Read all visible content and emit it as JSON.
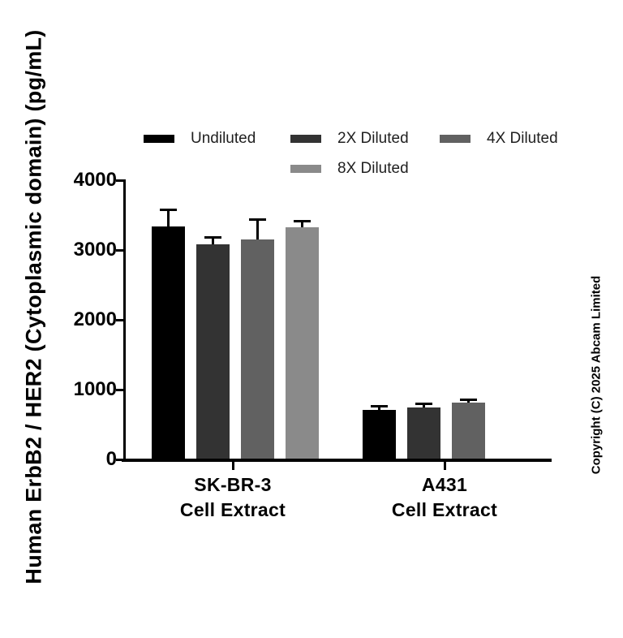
{
  "chart_data": {
    "type": "bar",
    "title": "",
    "xlabel": "",
    "ylabel": "Human ErbB2 / HER2 (Cytoplasmic domain) (pg/mL)",
    "ylim": [
      0,
      4000
    ],
    "yticks": [
      {
        "value": 0,
        "label": "0"
      },
      {
        "value": 1000,
        "label": "1000"
      },
      {
        "value": 2000,
        "label": "2000"
      },
      {
        "value": 3000,
        "label": "3000"
      },
      {
        "value": 4000,
        "label": "4000"
      }
    ],
    "grid": "off",
    "legend_position": "top",
    "categories": [
      {
        "line1": "SK-BR-3",
        "line2": "Cell Extract"
      },
      {
        "line1": "A431",
        "line2": "Cell Extract"
      }
    ],
    "series": [
      {
        "name": "Undiluted",
        "color": "#000000",
        "values": [
          3340,
          710
        ],
        "errors": [
          220,
          35
        ]
      },
      {
        "name": "2X Diluted",
        "color": "#333333",
        "values": [
          3080,
          745
        ],
        "errors": [
          80,
          30
        ]
      },
      {
        "name": "4X Diluted",
        "color": "#616161",
        "values": [
          3150,
          810
        ],
        "errors": [
          270,
          25
        ]
      },
      {
        "name": "8X Diluted",
        "color": "#8a8a8a",
        "values": [
          3320,
          null
        ],
        "errors": [
          70,
          null
        ]
      }
    ],
    "axis_color": "#000000",
    "background_color": "#ffffff",
    "copyright": "Copyright (C) 2025 Abcam Limited"
  }
}
